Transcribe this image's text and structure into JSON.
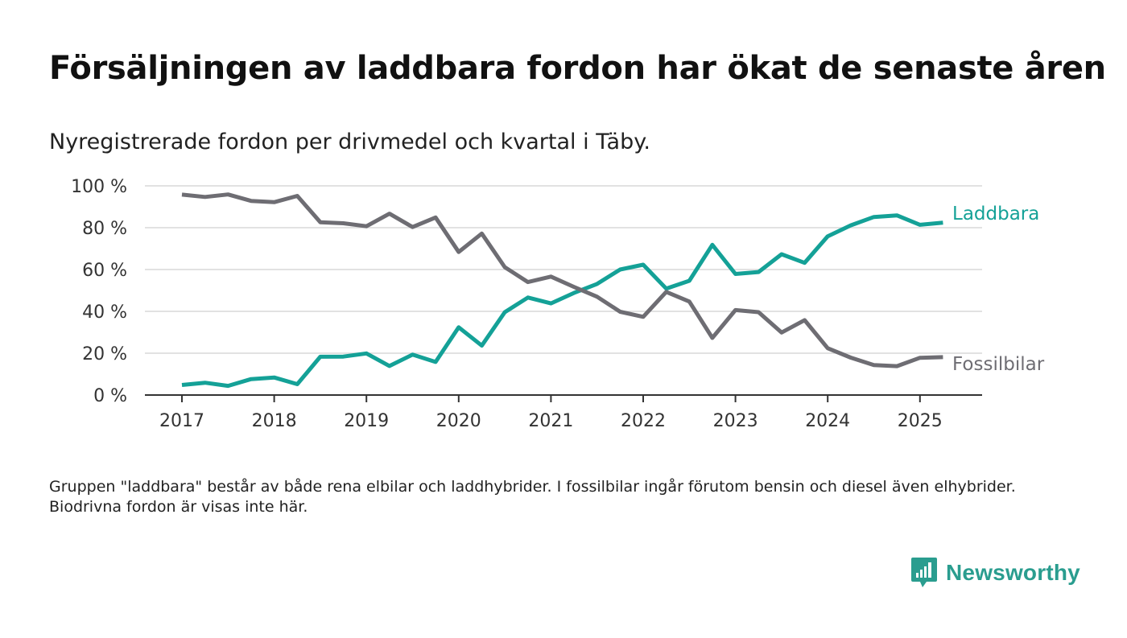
{
  "header": {
    "title": "Försäljningen av laddbara fordon har ökat de senaste åren",
    "subtitle": "Nyregistrerade fordon per drivmedel och kvartal i Täby."
  },
  "footnote": "Gruppen \"laddbara\" består av både rena elbilar och laddhybrider. I fossilbilar ingår förutom bensin och diesel även elhybrider. Biodrivna fordon är visas inte här.",
  "logo": {
    "text": "Newsworthy"
  },
  "colors": {
    "laddbara": "#14a197",
    "fossil": "#6e6d73",
    "grid": "#d9d9d9",
    "axis": "#333333",
    "brand": "#2a9d8f"
  },
  "chart_data": {
    "type": "line",
    "x_ticks": [
      "2017",
      "2018",
      "2019",
      "2020",
      "2021",
      "2022",
      "2023",
      "2024",
      "2025"
    ],
    "y_ticks": [
      "0 %",
      "20 %",
      "40 %",
      "60 %",
      "80 %",
      "100 %"
    ],
    "ylim": [
      0,
      100
    ],
    "grid": true,
    "x": [
      "2017 Q1",
      "2017 Q2",
      "2017 Q3",
      "2017 Q4",
      "2018 Q1",
      "2018 Q2",
      "2018 Q3",
      "2018 Q4",
      "2019 Q1",
      "2019 Q2",
      "2019 Q3",
      "2019 Q4",
      "2020 Q1",
      "2020 Q2",
      "2020 Q3",
      "2020 Q4",
      "2021 Q1",
      "2021 Q2",
      "2021 Q3",
      "2021 Q4",
      "2022 Q1",
      "2022 Q2",
      "2022 Q3",
      "2022 Q4",
      "2023 Q1",
      "2023 Q2",
      "2023 Q3",
      "2023 Q4",
      "2024 Q1",
      "2024 Q2",
      "2024 Q3",
      "2024 Q4",
      "2025 Q1",
      "2025 Q2"
    ],
    "series": [
      {
        "name": "Laddbara",
        "color": "#14a197",
        "values": [
          4.8,
          5.9,
          4.4,
          7.6,
          8.4,
          5.2,
          18.3,
          18.4,
          19.9,
          13.9,
          19.3,
          15.8,
          32.4,
          23.6,
          39.6,
          46.6,
          43.8,
          48.8,
          53.1,
          60.0,
          62.3,
          50.9,
          54.6,
          71.8,
          57.9,
          58.8,
          67.3,
          63.2,
          75.9,
          81.1,
          85.1,
          85.9,
          81.4,
          82.4
        ]
      },
      {
        "name": "Fossilbilar",
        "color": "#6e6d73",
        "values": [
          95.8,
          94.7,
          95.9,
          92.8,
          92.2,
          95.2,
          82.6,
          82.1,
          80.7,
          86.7,
          80.3,
          84.9,
          68.4,
          77.2,
          61.1,
          54.0,
          56.6,
          51.7,
          47.0,
          39.8,
          37.4,
          49.3,
          44.7,
          27.3,
          40.6,
          39.6,
          29.9,
          35.8,
          22.4,
          17.9,
          14.3,
          13.8,
          17.8,
          18.1
        ]
      }
    ]
  }
}
